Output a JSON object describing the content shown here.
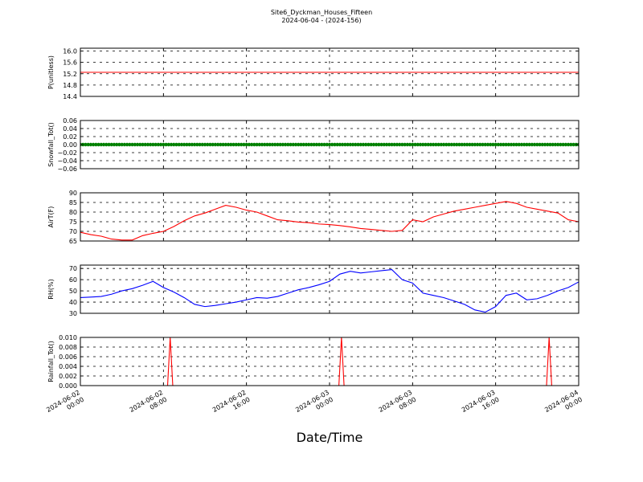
{
  "figure": {
    "title": "Site6_Dyckman_Houses_Fifteen",
    "subtitle": "2024-06-04 - (2024-156)",
    "xlabel": "Date/Time",
    "x_tick_labels": [
      [
        "2024-06-02",
        "00:00"
      ],
      [
        "2024-06-02",
        "08:00"
      ],
      [
        "2024-06-02",
        "16:00"
      ],
      [
        "2024-06-03",
        "00:00"
      ],
      [
        "2024-06-03",
        "08:00"
      ],
      [
        "2024-06-03",
        "16:00"
      ],
      [
        "2024-06-04",
        "00:00"
      ]
    ]
  },
  "chart_data": [
    {
      "type": "line",
      "ylabel": "P(unitless)",
      "ylim": [
        14.4,
        16.1
      ],
      "yticks": [
        14.4,
        14.8,
        15.2,
        15.6,
        16.0
      ],
      "ytick_labels": [
        "14.4",
        "14.8",
        "15.2",
        "15.6",
        "16.0"
      ],
      "color": "#ff0000",
      "grid": true,
      "x_hours": [
        0,
        48
      ],
      "values": [
        15.25,
        15.25
      ]
    },
    {
      "type": "scatter",
      "ylabel": "Snowfall_Tot()",
      "ylim": [
        -0.06,
        0.06
      ],
      "yticks": [
        -0.06,
        -0.04,
        -0.02,
        0.0,
        0.02,
        0.04,
        0.06
      ],
      "ytick_labels": [
        "−0.06",
        "−0.04",
        "−0.02",
        "0.00",
        "0.02",
        "0.04",
        "0.06"
      ],
      "color": "#008000",
      "grid": true,
      "constant_value": 0.0,
      "x_hours_range": [
        0,
        48
      ]
    },
    {
      "type": "line",
      "ylabel": "AirT(F)",
      "ylim": [
        65,
        90
      ],
      "yticks": [
        65,
        70,
        75,
        80,
        85,
        90
      ],
      "ytick_labels": [
        "65",
        "70",
        "75",
        "80",
        "85",
        "90"
      ],
      "color": "#ff0000",
      "grid": true,
      "x_hours": [
        0,
        1,
        2,
        3,
        4,
        5,
        6,
        7,
        8,
        9,
        10,
        11,
        12,
        13,
        14,
        15,
        16,
        17,
        18,
        19,
        20,
        21,
        22,
        23,
        24,
        25,
        26,
        27,
        28,
        29,
        30,
        31,
        32,
        33,
        34,
        35,
        36,
        37,
        38,
        39,
        40,
        41,
        42,
        43,
        44,
        45,
        46,
        47,
        48
      ],
      "values": [
        69.5,
        68.3,
        67.5,
        66.0,
        65.5,
        65.5,
        67.8,
        69.0,
        70.0,
        72.5,
        75.5,
        78.0,
        79.5,
        81.5,
        83.5,
        82.5,
        81.0,
        80.0,
        78.0,
        76.0,
        75.5,
        74.8,
        74.5,
        73.8,
        73.5,
        73.0,
        72.3,
        71.5,
        71.0,
        70.5,
        70.0,
        70.5,
        76.0,
        75.0,
        77.5,
        79.0,
        80.5,
        81.5,
        82.5,
        83.5,
        84.5,
        85.5,
        84.5,
        82.5,
        81.5,
        80.5,
        79.5,
        76.0,
        75.0
      ]
    },
    {
      "type": "line",
      "ylabel": "RH(%)",
      "ylim": [
        30,
        73
      ],
      "yticks": [
        30,
        40,
        50,
        60,
        70
      ],
      "ytick_labels": [
        "30",
        "40",
        "50",
        "60",
        "70"
      ],
      "color": "#0000ff",
      "grid": true,
      "x_hours": [
        0,
        1,
        2,
        3,
        4,
        5,
        6,
        7,
        8,
        9,
        10,
        11,
        12,
        13,
        14,
        15,
        16,
        17,
        18,
        19,
        20,
        21,
        22,
        23,
        24,
        25,
        26,
        27,
        28,
        29,
        30,
        31,
        32,
        33,
        34,
        35,
        36,
        37,
        38,
        39,
        40,
        41,
        42,
        43,
        44,
        45,
        46,
        47,
        48
      ],
      "values": [
        44.0,
        44.5,
        45.0,
        47.0,
        50.0,
        52.0,
        55.0,
        58.5,
        53.0,
        49.0,
        44.0,
        38.0,
        36.0,
        37.0,
        38.5,
        40.0,
        42.0,
        44.0,
        43.5,
        45.0,
        48.0,
        51.0,
        53.0,
        55.5,
        58.5,
        65.0,
        67.5,
        66.0,
        67.0,
        68.0,
        69.0,
        60.0,
        57.0,
        48.0,
        46.0,
        44.0,
        41.0,
        38.0,
        33.0,
        31.0,
        36.0,
        46.0,
        48.0,
        42.0,
        43.0,
        46.0,
        50.0,
        53.0,
        58.0
      ]
    },
    {
      "type": "line",
      "ylabel": "Rainfall_Tot()",
      "ylim": [
        0.0,
        0.01
      ],
      "yticks": [
        0.0,
        0.002,
        0.004,
        0.006,
        0.008,
        0.01
      ],
      "ytick_labels": [
        "0.000",
        "0.002",
        "0.004",
        "0.006",
        "0.008",
        "0.010"
      ],
      "color": "#ff0000",
      "grid": true,
      "x_hours": [
        0,
        8.4,
        8.65,
        8.9,
        24.9,
        25.15,
        25.4,
        44.9,
        45.15,
        45.4,
        48
      ],
      "values": [
        0.0,
        0.0,
        0.01,
        0.0,
        0.0,
        0.01,
        0.0,
        0.0,
        0.01,
        0.0,
        0.0
      ]
    }
  ]
}
